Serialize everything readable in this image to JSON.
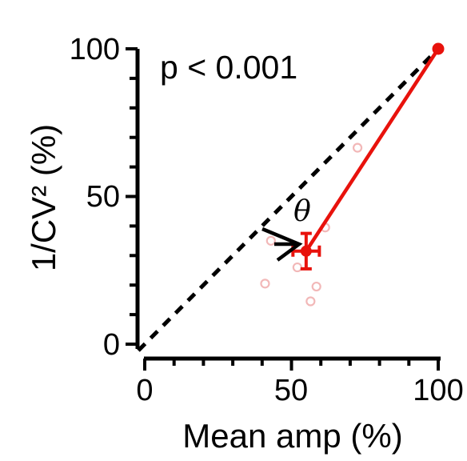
{
  "chart_data": {
    "type": "scatter",
    "xlabel": "Mean amp (%)",
    "ylabel": "1/CV² (%)",
    "xlim": [
      0,
      100
    ],
    "ylim": [
      0,
      100
    ],
    "xticks": [
      0,
      50,
      100
    ],
    "yticks": [
      0,
      50,
      100
    ],
    "annotations": {
      "pvalue": "p < 0.001",
      "theta": "θ"
    },
    "reference_line": {
      "from": [
        0,
        0
      ],
      "to": [
        100,
        100
      ],
      "style": "dashed"
    },
    "mean_line": {
      "from": [
        55,
        31.5
      ],
      "to": [
        100,
        100
      ]
    },
    "series": [
      {
        "type": "individual",
        "points": [
          {
            "x": 43,
            "y": 35
          },
          {
            "x": 61.5,
            "y": 39.5
          },
          {
            "x": 52,
            "y": 26
          },
          {
            "x": 41,
            "y": 20.5
          },
          {
            "x": 58.5,
            "y": 19.5
          },
          {
            "x": 56.5,
            "y": 14.5
          },
          {
            "x": 72.5,
            "y": 66.5
          }
        ]
      },
      {
        "type": "mean",
        "x": 55,
        "y": 31.5,
        "xerr": 4.5,
        "yerr": 6
      },
      {
        "type": "baseline",
        "x": 100,
        "y": 100
      }
    ],
    "colors": {
      "mean": "#e8120c",
      "individual": "#f2b8b8",
      "axes": "#000000"
    }
  }
}
